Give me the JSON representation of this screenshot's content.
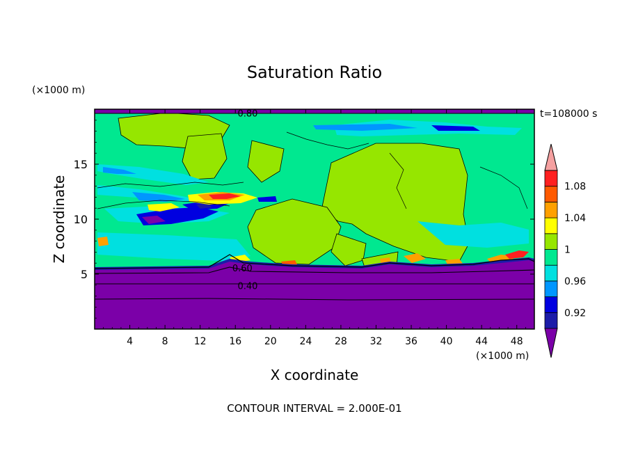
{
  "chart_data": {
    "type": "heatmap",
    "title": "Saturation Ratio",
    "xlabel": "X coordinate",
    "ylabel": "Z coordinate",
    "x_unit": "(×1000 m)",
    "y_unit": "(×1000 m)",
    "time_label": "t=108000 s",
    "footer": "CONTOUR INTERVAL = 2.000E-01",
    "xlim": [
      0,
      50
    ],
    "ylim": [
      0,
      20
    ],
    "x_ticks": [
      "4",
      "8",
      "12",
      "16",
      "20",
      "24",
      "28",
      "32",
      "36",
      "40",
      "44",
      "48"
    ],
    "x_tick_values": [
      4,
      8,
      12,
      16,
      20,
      24,
      28,
      32,
      36,
      40,
      44,
      48
    ],
    "y_ticks": [
      "5",
      "10",
      "15"
    ],
    "y_tick_values": [
      5,
      10,
      15
    ],
    "contour_labels": [
      {
        "text": "0.80",
        "x": 17.4,
        "y": 19.6
      },
      {
        "text": "0.60",
        "x": 16.8,
        "y": 5.5
      },
      {
        "text": "0.40",
        "x": 17.4,
        "y": 3.9
      }
    ],
    "colorbar": {
      "levels": [
        0.9,
        0.92,
        0.94,
        0.96,
        0.98,
        1.0,
        1.02,
        1.04,
        1.06,
        1.08,
        1.1
      ],
      "labels": [
        "0.92",
        "0.96",
        "1",
        "1.04",
        "1.08"
      ],
      "label_values": [
        0.92,
        0.96,
        1.0,
        1.04,
        1.08
      ],
      "colors": [
        "#7b00a8",
        "#1c1ca8",
        "#0000e0",
        "#0096ff",
        "#00e0e0",
        "#00e890",
        "#96e600",
        "#ffff00",
        "#ffa000",
        "#ff5a00",
        "#ff2020",
        "#f5a0a0"
      ]
    }
  }
}
